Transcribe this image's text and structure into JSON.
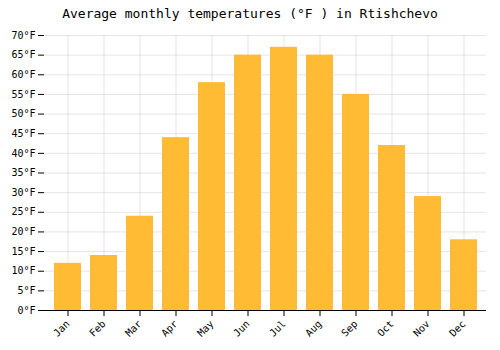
{
  "chart_data": {
    "type": "bar",
    "title": "Average monthly temperatures (°F ) in Rtishchevo",
    "categories": [
      "Jan",
      "Feb",
      "Mar",
      "Apr",
      "May",
      "Jun",
      "Jul",
      "Aug",
      "Sep",
      "Oct",
      "Nov",
      "Dec"
    ],
    "values": [
      12,
      14,
      24,
      44,
      58,
      65,
      67,
      65,
      55,
      42,
      29,
      18
    ],
    "color": "#FFBB33",
    "ylim": [
      0,
      70
    ],
    "yticks": [
      {
        "value": 0,
        "label": "0°F"
      },
      {
        "value": 5,
        "label": "5°F"
      },
      {
        "value": 10,
        "label": "10°F"
      },
      {
        "value": 15,
        "label": "15°F"
      },
      {
        "value": 20,
        "label": "20°F"
      },
      {
        "value": 25,
        "label": "25°F"
      },
      {
        "value": 30,
        "label": "30°F"
      },
      {
        "value": 35,
        "label": "35°F"
      },
      {
        "value": 40,
        "label": "40°F"
      },
      {
        "value": 45,
        "label": "45°F"
      },
      {
        "value": 50,
        "label": "50°F"
      },
      {
        "value": 55,
        "label": "55°F"
      },
      {
        "value": 60,
        "label": "60°F"
      },
      {
        "value": 65,
        "label": "65°F"
      },
      {
        "value": 70,
        "label": "70°F"
      }
    ],
    "grid": true
  }
}
